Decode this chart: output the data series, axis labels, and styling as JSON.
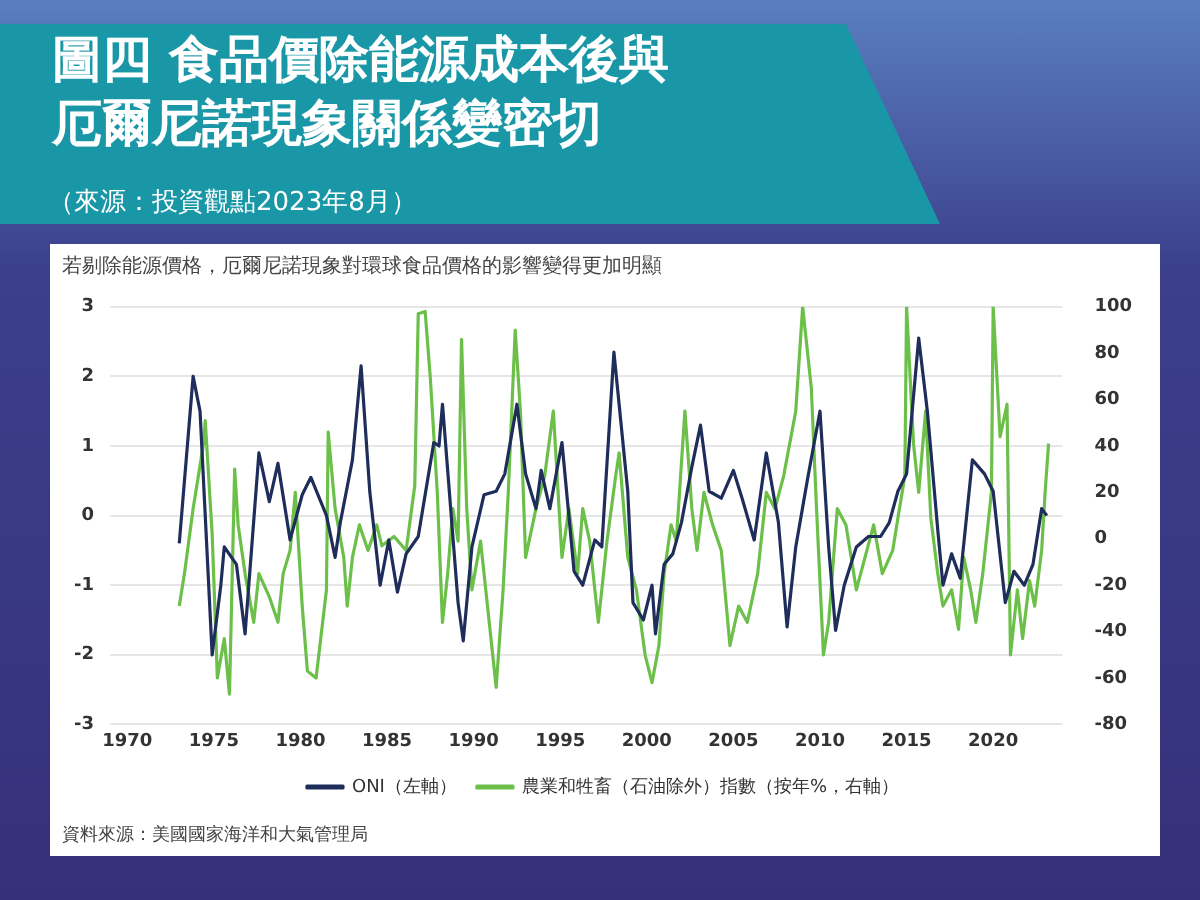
{
  "chart_data": {
    "type": "line",
    "title": "圖四 食品價除能源成本後與厄爾尼諾現象關係變密切",
    "subtitle": "（來源：投資觀點2023年8月）",
    "annotations": [
      "若剔除能源價格，厄爾尼諾現象對環球食品價格的影響變得更加明顯",
      "資料來源：美國國家海洋和大氣管理局"
    ],
    "xlim": [
      1969,
      2024
    ],
    "xticks": [
      1970,
      1975,
      1980,
      1985,
      1990,
      1995,
      2000,
      2005,
      2010,
      2015,
      2020
    ],
    "ylim": [
      -3,
      3
    ],
    "yticks": [
      -3,
      -2,
      -1,
      0,
      1,
      2,
      3
    ],
    "y2lim": [
      -80,
      100
    ],
    "y2ticks": [
      -80,
      -60,
      -40,
      -20,
      0,
      20,
      40,
      60,
      80,
      100
    ],
    "grid": "y",
    "legend": "bottom",
    "marker": "none",
    "line_style": "solid",
    "series": [
      {
        "name": "ONI（左軸）",
        "color": "#1f2d5a",
        "axis": "y",
        "x": [
          1973.0,
          1973.8,
          1974.2,
          1974.9,
          1975.4,
          1975.6,
          1976.3,
          1976.8,
          1977.6,
          1978.2,
          1978.7,
          1979.4,
          1980.1,
          1980.6,
          1981.5,
          1982.0,
          1982.3,
          1983.0,
          1983.5,
          1984.0,
          1984.6,
          1985.1,
          1985.6,
          1986.1,
          1986.8,
          1987.7,
          1988.0,
          1988.2,
          1989.1,
          1989.4,
          1989.9,
          1990.6,
          1991.3,
          1991.8,
          1992.5,
          1993.0,
          1993.6,
          1993.9,
          1994.4,
          1995.1,
          1995.8,
          1996.3,
          1997.0,
          1997.4,
          1998.1,
          1998.9,
          1999.2,
          1999.8,
          2000.3,
          2000.5,
          2001.0,
          2001.5,
          2002.0,
          2002.6,
          2003.1,
          2003.6,
          2004.3,
          2005.0,
          2005.5,
          2006.2,
          2006.9,
          2007.6,
          2008.1,
          2008.6,
          2009.3,
          2010.0,
          2010.5,
          2010.9,
          2011.4,
          2012.1,
          2012.8,
          2013.5,
          2014.0,
          2014.5,
          2015.0,
          2015.7,
          2016.2,
          2016.8,
          2017.1,
          2017.6,
          2018.1,
          2018.8,
          2019.5,
          2020.0,
          2020.7,
          2021.2,
          2021.8,
          2022.3,
          2022.8,
          2023.1
        ],
        "values": [
          -0.4,
          2.0,
          1.5,
          -2.0,
          -1.0,
          -0.45,
          -0.7,
          -1.7,
          0.9,
          0.2,
          0.75,
          -0.35,
          0.3,
          0.55,
          0.0,
          -0.6,
          -0.1,
          0.8,
          2.15,
          0.35,
          -1.0,
          -0.35,
          -1.1,
          -0.55,
          -0.3,
          1.05,
          1.0,
          1.6,
          -1.25,
          -1.8,
          -0.45,
          0.3,
          0.35,
          0.6,
          1.6,
          0.6,
          0.1,
          0.65,
          0.1,
          1.05,
          -0.8,
          -1.0,
          -0.35,
          -0.45,
          2.35,
          0.35,
          -1.25,
          -1.5,
          -1.0,
          -1.7,
          -0.7,
          -0.55,
          -0.1,
          0.7,
          1.3,
          0.35,
          0.25,
          0.65,
          0.25,
          -0.35,
          0.9,
          -0.1,
          -1.6,
          -0.45,
          0.55,
          1.5,
          -0.45,
          -1.65,
          -1.0,
          -0.45,
          -0.3,
          -0.3,
          -0.1,
          0.35,
          0.6,
          2.55,
          1.5,
          -0.2,
          -1.0,
          -0.55,
          -0.9,
          0.8,
          0.6,
          0.35,
          -1.25,
          -0.8,
          -1.0,
          -0.7,
          0.1,
          0.0
        ]
      },
      {
        "name": "農業和牲畜（石油除外）指數（按年%，右軸）",
        "color": "#6cc04a",
        "axis": "y2",
        "x": [
          1973.0,
          1973.3,
          1973.8,
          1974.4,
          1974.5,
          1974.9,
          1975.2,
          1975.6,
          1975.9,
          1976.2,
          1976.4,
          1976.8,
          1977.3,
          1977.6,
          1978.2,
          1978.7,
          1979.0,
          1979.4,
          1979.7,
          1980.1,
          1980.4,
          1980.9,
          1981.5,
          1981.6,
          1982.0,
          1982.5,
          1982.7,
          1983.0,
          1983.4,
          1983.9,
          1984.4,
          1984.7,
          1985.4,
          1986.1,
          1986.6,
          1986.8,
          1987.2,
          1987.5,
          1987.9,
          1988.2,
          1988.5,
          1988.8,
          1989.1,
          1989.3,
          1989.6,
          1989.9,
          1990.4,
          1991.0,
          1991.3,
          1991.7,
          1992.0,
          1992.4,
          1992.7,
          1993.0,
          1993.6,
          1994.1,
          1994.6,
          1995.1,
          1995.5,
          1996.0,
          1996.3,
          1996.7,
          1997.2,
          1997.7,
          1998.2,
          1998.4,
          1998.9,
          1999.4,
          1999.9,
          2000.3,
          2000.7,
          2001.0,
          2001.4,
          2001.7,
          2002.2,
          2002.6,
          2002.9,
          2003.3,
          2003.8,
          2004.3,
          2004.8,
          2005.3,
          2005.8,
          2006.4,
          2006.9,
          2007.4,
          2007.9,
          2008.6,
          2009.0,
          2009.5,
          2009.8,
          2010.2,
          2010.5,
          2011.0,
          2011.5,
          2012.1,
          2012.6,
          2013.1,
          2013.6,
          2014.2,
          2014.5,
          2014.9,
          2015.0,
          2015.4,
          2015.7,
          2016.1,
          2016.4,
          2016.8,
          2017.1,
          2017.6,
          2018.0,
          2018.3,
          2018.7,
          2019.0,
          2019.4,
          2019.9,
          2020.0,
          2020.4,
          2020.8,
          2021.0,
          2021.4,
          2021.7,
          2022.1,
          2022.4,
          2022.8,
          2023.0,
          2023.2
        ],
        "values": [
          -29,
          -15,
          13,
          41,
          51,
          2,
          -60,
          -43,
          -67,
          30,
          6,
          -15,
          -36,
          -15,
          -25,
          -36,
          -15,
          -5,
          20,
          -29,
          -57,
          -60,
          -22,
          46,
          13,
          -8,
          -29,
          -8,
          6,
          -5,
          6,
          -3,
          1,
          -5,
          23,
          97,
          98,
          69,
          20,
          -36,
          -15,
          13,
          -1,
          86,
          13,
          -22,
          -1,
          -43,
          -64,
          -22,
          20,
          90,
          55,
          -8,
          13,
          27,
          55,
          -8,
          13,
          -15,
          13,
          -1,
          -36,
          -1,
          27,
          37,
          -8,
          -22,
          -50,
          -62,
          -46,
          -15,
          6,
          -1,
          55,
          13,
          -5,
          20,
          6,
          -5,
          -46,
          -29,
          -36,
          -15,
          20,
          13,
          27,
          55,
          100,
          65,
          13,
          -50,
          -36,
          13,
          6,
          -22,
          -8,
          6,
          -15,
          -5,
          9,
          27,
          100,
          41,
          20,
          55,
          9,
          -15,
          -29,
          -22,
          -39,
          -8,
          -22,
          -36,
          -15,
          20,
          100,
          44,
          58,
          -50,
          -22,
          -43,
          -18,
          -29,
          -5,
          20,
          41
        ]
      }
    ]
  }
}
